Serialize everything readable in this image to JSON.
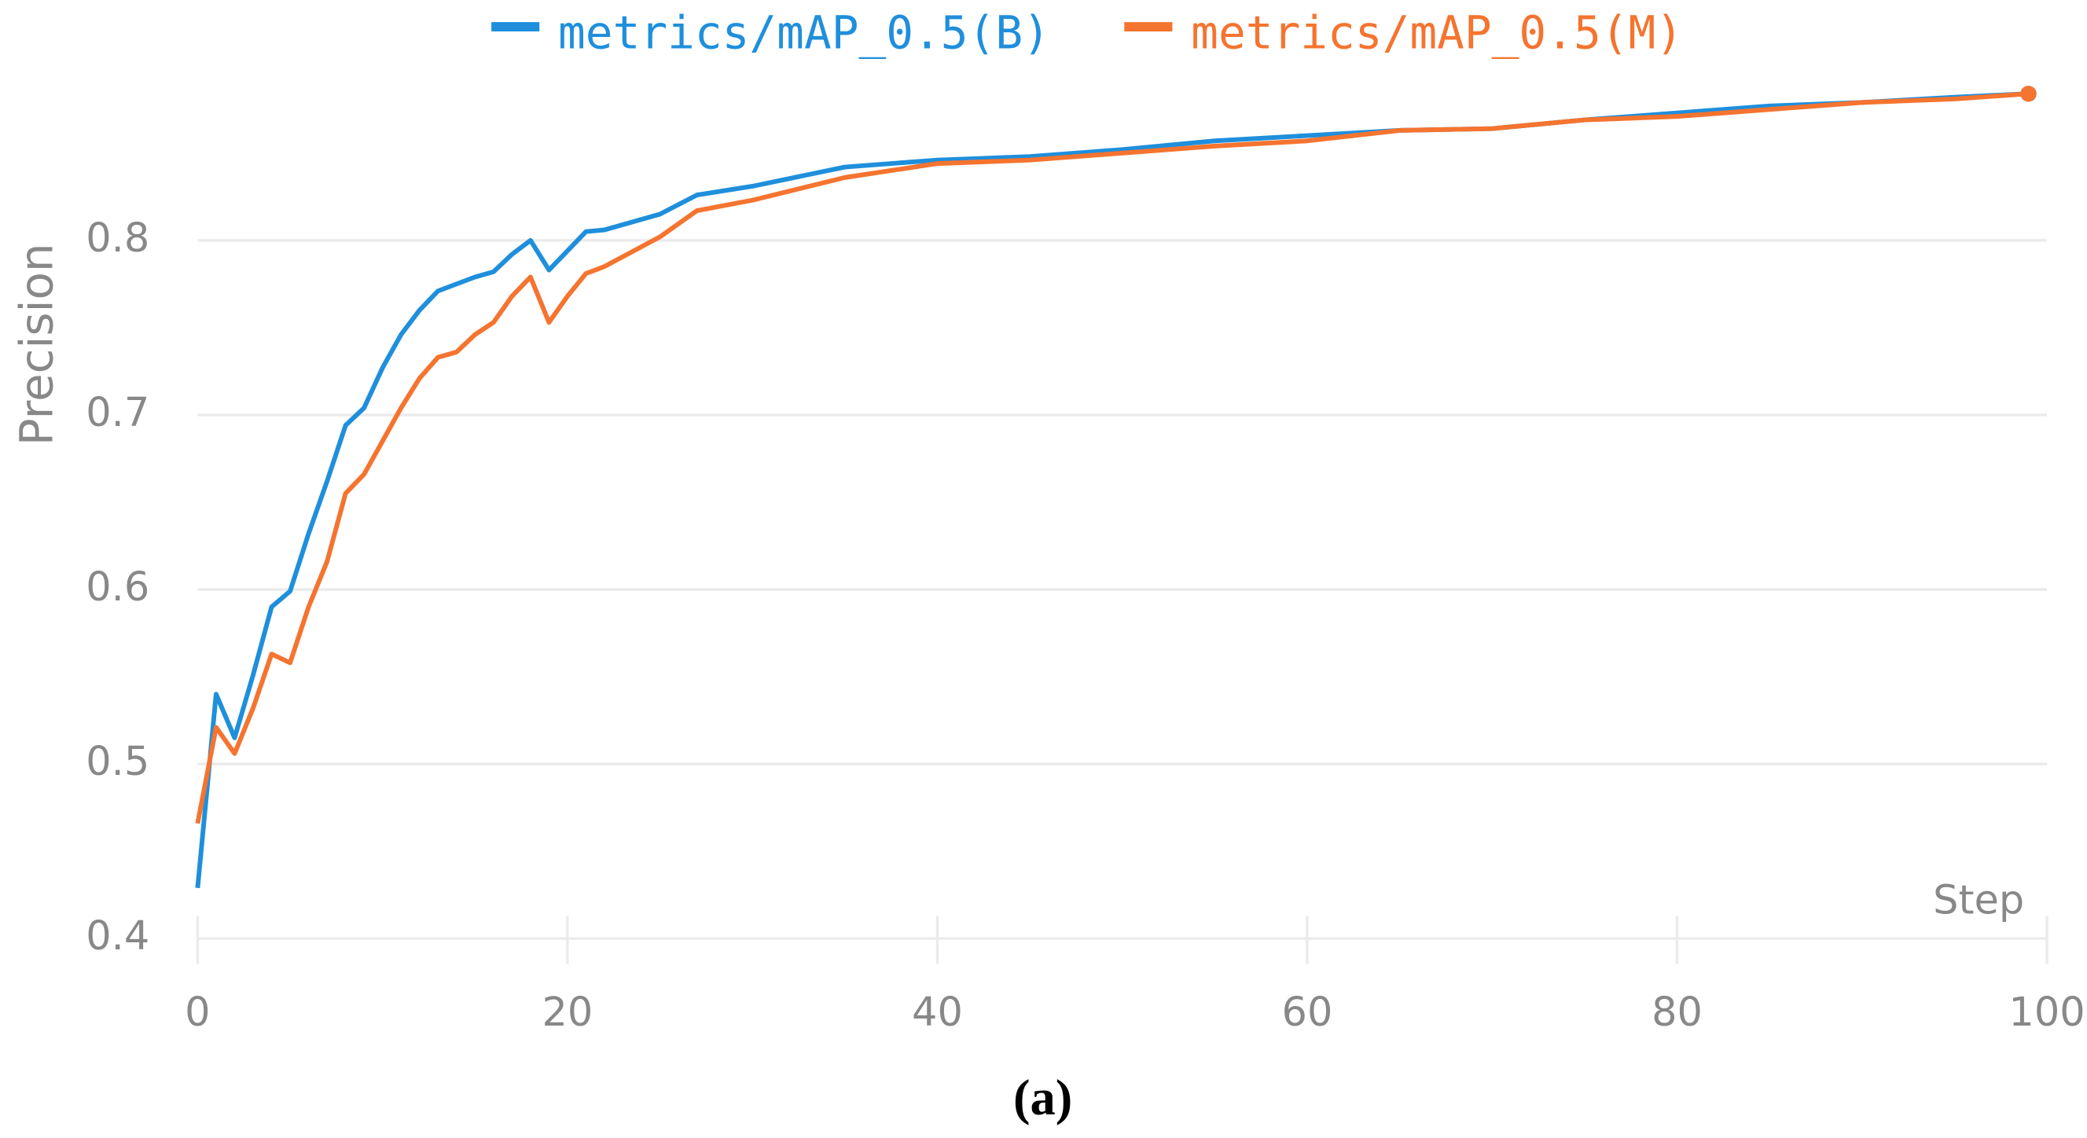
{
  "chart_data": {
    "type": "line",
    "caption": "(a)",
    "ylabel": "Precision",
    "xlabel": "Step",
    "xlim": [
      0,
      100
    ],
    "ylim": [
      0.4,
      0.9
    ],
    "xticks": [
      0,
      20,
      40,
      60,
      80,
      100
    ],
    "yticks": [
      0.4,
      0.5,
      0.6,
      0.7,
      0.8
    ],
    "grid": true,
    "legend": "top",
    "x": [
      0,
      1,
      2,
      3,
      4,
      5,
      6,
      7,
      8,
      9,
      10,
      11,
      12,
      13,
      14,
      15,
      16,
      17,
      18,
      19,
      20,
      21,
      22,
      25,
      27,
      30,
      35,
      40,
      45,
      50,
      55,
      60,
      65,
      70,
      75,
      80,
      85,
      90,
      95,
      99
    ],
    "series": [
      {
        "name": "metrics/mAP_0.5(B)",
        "color": "#1f8fdc",
        "values": [
          0.429,
          0.54,
          0.515,
          0.551,
          0.59,
          0.599,
          0.632,
          0.662,
          0.694,
          0.704,
          0.727,
          0.746,
          0.76,
          0.771,
          0.775,
          0.779,
          0.782,
          0.792,
          0.8,
          0.783,
          0.794,
          0.805,
          0.806,
          0.815,
          0.826,
          0.831,
          0.842,
          0.846,
          0.848,
          0.852,
          0.857,
          0.86,
          0.863,
          0.864,
          0.869,
          0.873,
          0.877,
          0.879,
          0.882,
          0.884
        ]
      },
      {
        "name": "metrics/mAP_0.5(M)",
        "color": "#f5742f",
        "values": [
          0.466,
          0.521,
          0.506,
          0.532,
          0.563,
          0.558,
          0.59,
          0.616,
          0.655,
          0.666,
          0.685,
          0.704,
          0.721,
          0.733,
          0.736,
          0.746,
          0.753,
          0.768,
          0.779,
          0.753,
          0.768,
          0.781,
          0.785,
          0.802,
          0.817,
          0.823,
          0.836,
          0.844,
          0.846,
          0.85,
          0.854,
          0.857,
          0.863,
          0.864,
          0.869,
          0.871,
          0.875,
          0.879,
          0.881,
          0.884
        ]
      }
    ]
  }
}
